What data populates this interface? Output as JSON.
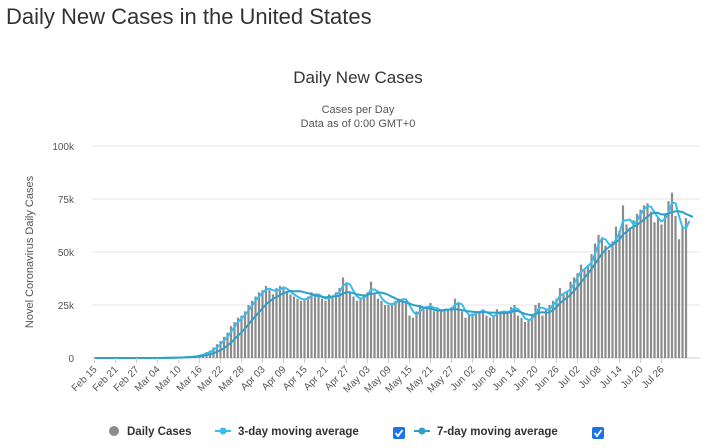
{
  "page": {
    "title": "Daily New Cases in the United States"
  },
  "chart_data": {
    "type": "bar",
    "title": "Daily New Cases",
    "subtitle_lines": [
      "Cases per Day",
      "Data as of 0:00 GMT+0"
    ],
    "ylabel": "Novel Coronavirus Daily Cases",
    "ylim": [
      0,
      100000
    ],
    "y_ticks": [
      0,
      25000,
      50000,
      75000,
      100000
    ],
    "y_tick_labels": [
      "0",
      "25k",
      "50k",
      "75k",
      "100k"
    ],
    "x_tick_labels": [
      "Feb 15",
      "Feb 21",
      "Feb 27",
      "Mar 04",
      "Mar 10",
      "Mar 16",
      "Mar 22",
      "Mar 28",
      "Apr 03",
      "Apr 09",
      "Apr 15",
      "Apr 21",
      "Apr 27",
      "May 03",
      "May 09",
      "May 15",
      "May 21",
      "May 27",
      "Jun 02",
      "Jun 08",
      "Jun 14",
      "Jun 20",
      "Jun 26",
      "Jul 02",
      "Jul 08",
      "Jul 14",
      "Jul 20",
      "Jul 26"
    ],
    "x_start": "Feb 15",
    "x_end": "Jul 29",
    "grid": true,
    "legend_position": "bottom",
    "series": [
      {
        "name": "Daily Cases",
        "kind": "bar",
        "color": "#8c8c8c",
        "values": [
          0,
          0,
          0,
          0,
          0,
          0,
          0,
          0,
          0,
          0,
          0,
          0,
          0,
          0,
          0,
          0,
          0,
          0,
          0,
          100,
          100,
          100,
          200,
          200,
          300,
          400,
          500,
          600,
          700,
          1000,
          1500,
          2000,
          2800,
          3500,
          5000,
          6500,
          8000,
          10000,
          12000,
          15000,
          17000,
          19000,
          20000,
          22000,
          25000,
          27000,
          29000,
          31000,
          32000,
          34000,
          32000,
          30000,
          33000,
          34000,
          33000,
          31000,
          30000,
          29000,
          28000,
          27000,
          28000,
          29000,
          31000,
          30000,
          29000,
          28000,
          27000,
          30000,
          29000,
          31000,
          33000,
          38000,
          35000,
          31000,
          29000,
          27000,
          28000,
          30000,
          31000,
          36000,
          30000,
          28000,
          27000,
          25000,
          25000,
          26000,
          27000,
          28000,
          28000,
          27000,
          20000,
          19000,
          22000,
          25000,
          24000,
          23000,
          26000,
          22000,
          22000,
          23000,
          22000,
          23000,
          24000,
          28000,
          26000,
          22000,
          19000,
          20000,
          21000,
          22000,
          22000,
          23000,
          20000,
          19000,
          20000,
          23000,
          22000,
          21000,
          22000,
          24000,
          25000,
          20000,
          19000,
          17000,
          18000,
          20000,
          25000,
          26000,
          20000,
          23000,
          25000,
          27000,
          28000,
          33000,
          30000,
          31000,
          36000,
          38000,
          40000,
          44000,
          42000,
          44000,
          49000,
          54000,
          58000,
          57000,
          53000,
          51000,
          55000,
          62000,
          60000,
          72000,
          63000,
          61000,
          65000,
          68000,
          70000,
          72000,
          73000,
          69000,
          64000,
          66000,
          63000,
          68000,
          74000,
          78000,
          67000,
          56000,
          62000,
          66000
        ],
        "last_value": 66000
      },
      {
        "name": "3-day moving average",
        "kind": "line",
        "color": "#38bdf0",
        "values": [
          0,
          0,
          0,
          0,
          0,
          0,
          0,
          0,
          0,
          0,
          0,
          0,
          0,
          0,
          0,
          0,
          0,
          0,
          0,
          33,
          67,
          100,
          133,
          167,
          233,
          300,
          400,
          500,
          600,
          767,
          1067,
          1500,
          2100,
          2767,
          3767,
          5000,
          6500,
          8167,
          10000,
          12333,
          14667,
          17000,
          18667,
          20333,
          22333,
          24667,
          27000,
          29000,
          30667,
          32333,
          32667,
          32000,
          31667,
          32333,
          33333,
          32667,
          31333,
          30000,
          29000,
          28000,
          27667,
          28000,
          29333,
          30000,
          30000,
          29000,
          28000,
          28333,
          28667,
          30000,
          31000,
          34000,
          35333,
          34667,
          31667,
          29000,
          28000,
          28333,
          29667,
          32333,
          32333,
          31333,
          28333,
          26667,
          25667,
          25333,
          26000,
          27000,
          27667,
          27667,
          25000,
          22000,
          20333,
          22000,
          23667,
          24000,
          24333,
          23667,
          23333,
          22333,
          22333,
          22667,
          23000,
          25000,
          26000,
          25333,
          22333,
          20333,
          20000,
          21000,
          21667,
          22333,
          21667,
          20667,
          19667,
          20667,
          21667,
          22000,
          21667,
          22333,
          23667,
          23000,
          21333,
          18667,
          18000,
          18333,
          21000,
          23667,
          23667,
          23000,
          22667,
          25000,
          26667,
          29333,
          30333,
          31333,
          32333,
          35000,
          38000,
          40667,
          42000,
          43333,
          45000,
          49000,
          53667,
          56333,
          56000,
          53667,
          53000,
          56000,
          59000,
          64667,
          65000,
          65333,
          63000,
          64667,
          67667,
          70000,
          71667,
          71333,
          68667,
          66333,
          64333,
          65667,
          68333,
          73333,
          73000,
          67000,
          61667,
          61333,
          64667
        ]
      },
      {
        "name": "7-day moving average",
        "kind": "line",
        "color": "#2f9fc7",
        "values": [
          0,
          0,
          0,
          0,
          0,
          0,
          0,
          0,
          0,
          0,
          0,
          0,
          0,
          0,
          0,
          0,
          0,
          0,
          0,
          14,
          29,
          43,
          71,
          100,
          143,
          200,
          271,
          357,
          457,
          600,
          800,
          1043,
          1357,
          1729,
          2257,
          2914,
          3686,
          4686,
          5843,
          7271,
          8857,
          10500,
          12143,
          13929,
          15857,
          17857,
          19714,
          21571,
          23429,
          25286,
          26714,
          27857,
          28714,
          29714,
          30571,
          31143,
          31714,
          31429,
          31571,
          31429,
          31000,
          30571,
          30143,
          29571,
          29143,
          28857,
          28571,
          28857,
          29000,
          29143,
          29429,
          30429,
          31000,
          31000,
          30571,
          30000,
          29714,
          29286,
          29857,
          30286,
          30429,
          30857,
          30857,
          30429,
          29714,
          28857,
          28143,
          27143,
          26571,
          26286,
          25714,
          25000,
          24714,
          24286,
          23857,
          23429,
          23286,
          22714,
          22429,
          22429,
          22714,
          22857,
          22857,
          23000,
          22857,
          22571,
          22286,
          22000,
          21857,
          21714,
          21571,
          21714,
          21571,
          21429,
          21429,
          21429,
          21286,
          21143,
          21286,
          21571,
          22286,
          22143,
          21429,
          20857,
          20429,
          20286,
          20714,
          21429,
          21571,
          21429,
          21571,
          22571,
          24000,
          25857,
          27143,
          28429,
          29857,
          31571,
          33571,
          35714,
          37714,
          39857,
          42000,
          44286,
          46857,
          49143,
          51143,
          52286,
          53429,
          54571,
          56000,
          58286,
          59429,
          61143,
          61857,
          62857,
          64000,
          65286,
          66714,
          67857,
          68571,
          68429,
          67714,
          67714,
          68143,
          68857,
          69143,
          69143,
          68857,
          67857,
          67286,
          66571
        ]
      }
    ]
  },
  "legend": {
    "items": [
      {
        "label": "Daily Cases",
        "color": "#8c8c8c",
        "checkbox": false
      },
      {
        "label": "3-day moving average",
        "color": "#38bdf0",
        "checkbox": true
      },
      {
        "label": "7-day moving average",
        "color": "#2f9fc7",
        "checkbox": true
      }
    ]
  }
}
